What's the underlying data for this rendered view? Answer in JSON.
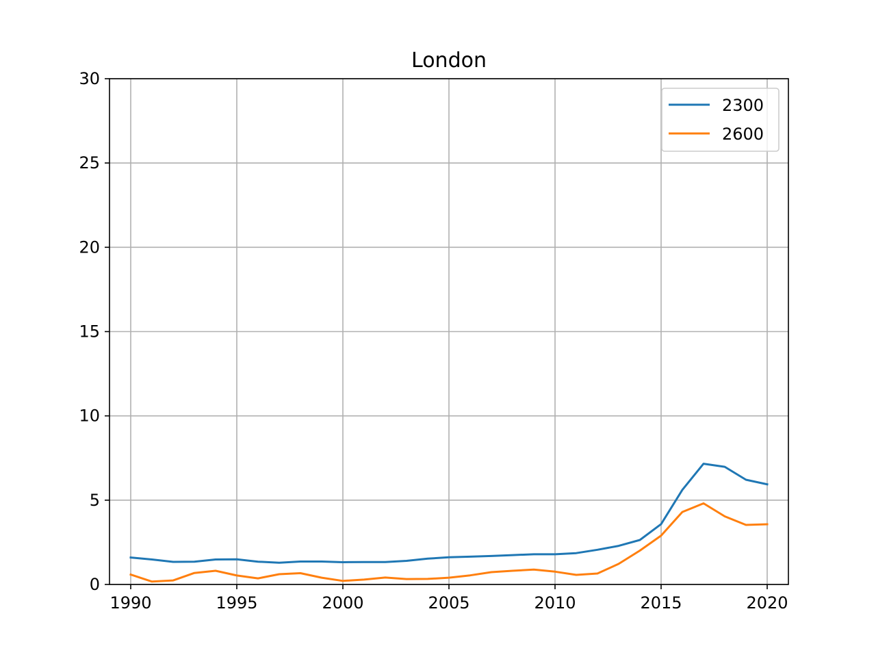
{
  "chart_data": {
    "type": "line",
    "title": "London",
    "xlabel": "",
    "ylabel": "",
    "xlim": [
      1989,
      2021
    ],
    "ylim": [
      0,
      30
    ],
    "xticks": [
      1990,
      1995,
      2000,
      2005,
      2010,
      2015,
      2020
    ],
    "yticks": [
      0,
      5,
      10,
      15,
      20,
      25,
      30
    ],
    "grid": true,
    "legend_position": "top-right",
    "x": [
      1990,
      1991,
      1992,
      1993,
      1994,
      1995,
      1996,
      1997,
      1998,
      1999,
      2000,
      2001,
      2002,
      2003,
      2004,
      2005,
      2006,
      2007,
      2008,
      2009,
      2010,
      2011,
      2012,
      2013,
      2014,
      2015,
      2016,
      2017,
      2018,
      2019,
      2020
    ],
    "series": [
      {
        "name": "2300",
        "color": "#1f77b4",
        "values": [
          1.6,
          1.48,
          1.34,
          1.35,
          1.48,
          1.49,
          1.35,
          1.29,
          1.36,
          1.36,
          1.32,
          1.33,
          1.33,
          1.4,
          1.53,
          1.61,
          1.65,
          1.69,
          1.74,
          1.79,
          1.79,
          1.86,
          2.06,
          2.29,
          2.64,
          3.58,
          5.61,
          7.16,
          6.98,
          6.21,
          5.94
        ]
      },
      {
        "name": "2600",
        "color": "#ff7f0e",
        "values": [
          0.59,
          0.17,
          0.24,
          0.68,
          0.81,
          0.53,
          0.36,
          0.61,
          0.67,
          0.4,
          0.21,
          0.29,
          0.41,
          0.32,
          0.33,
          0.4,
          0.54,
          0.73,
          0.81,
          0.88,
          0.76,
          0.57,
          0.65,
          1.22,
          2.01,
          2.9,
          4.3,
          4.81,
          4.04,
          3.53,
          3.57
        ]
      }
    ]
  }
}
